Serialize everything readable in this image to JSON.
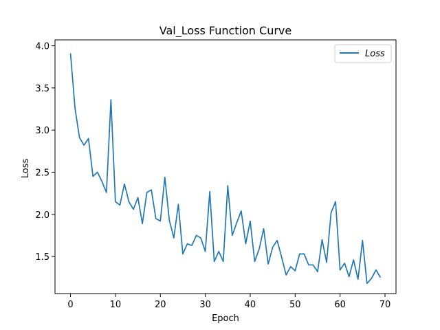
{
  "chart_data": {
    "type": "line",
    "title": "Val_Loss Function Curve",
    "xlabel": "Epoch",
    "ylabel": "Loss",
    "xlim": [
      -3.45,
      72.45
    ],
    "ylim": [
      1.06,
      4.07
    ],
    "xticks": [
      0,
      10,
      20,
      30,
      40,
      50,
      60,
      70
    ],
    "yticks": [
      1.5,
      2.0,
      2.5,
      3.0,
      3.5,
      4.0
    ],
    "xtick_labels": [
      "0",
      "10",
      "20",
      "30",
      "40",
      "50",
      "60",
      "70"
    ],
    "ytick_labels": [
      "1.5",
      "2.0",
      "2.5",
      "3.0",
      "3.5",
      "4.0"
    ],
    "grid": false,
    "legend_position": "top-right",
    "series": [
      {
        "name": "Loss",
        "color": "#1f77b4",
        "x": [
          0,
          1,
          2,
          3,
          4,
          5,
          6,
          7,
          8,
          9,
          10,
          11,
          12,
          13,
          14,
          15,
          16,
          17,
          18,
          19,
          20,
          21,
          22,
          23,
          24,
          25,
          26,
          27,
          28,
          29,
          30,
          31,
          32,
          33,
          34,
          35,
          36,
          37,
          38,
          39,
          40,
          41,
          42,
          43,
          44,
          45,
          46,
          47,
          48,
          49,
          50,
          51,
          52,
          53,
          54,
          55,
          56,
          57,
          58,
          59,
          60,
          61,
          62,
          63,
          64,
          65,
          66,
          67,
          68,
          69
        ],
        "values": [
          3.91,
          3.26,
          2.91,
          2.82,
          2.9,
          2.45,
          2.5,
          2.39,
          2.26,
          3.36,
          2.15,
          2.11,
          2.36,
          2.15,
          2.06,
          2.2,
          1.89,
          2.26,
          2.29,
          1.95,
          1.92,
          2.44,
          1.93,
          1.72,
          2.12,
          1.53,
          1.65,
          1.63,
          1.75,
          1.72,
          1.56,
          2.27,
          1.44,
          1.56,
          1.44,
          2.34,
          1.75,
          1.9,
          2.04,
          1.65,
          1.92,
          1.44,
          1.59,
          1.83,
          1.41,
          1.61,
          1.69,
          1.49,
          1.28,
          1.38,
          1.33,
          1.53,
          1.53,
          1.4,
          1.4,
          1.32,
          1.7,
          1.43,
          2.02,
          2.15,
          1.34,
          1.42,
          1.26,
          1.46,
          1.23,
          1.69,
          1.18,
          1.24,
          1.34,
          1.25
        ]
      }
    ]
  }
}
